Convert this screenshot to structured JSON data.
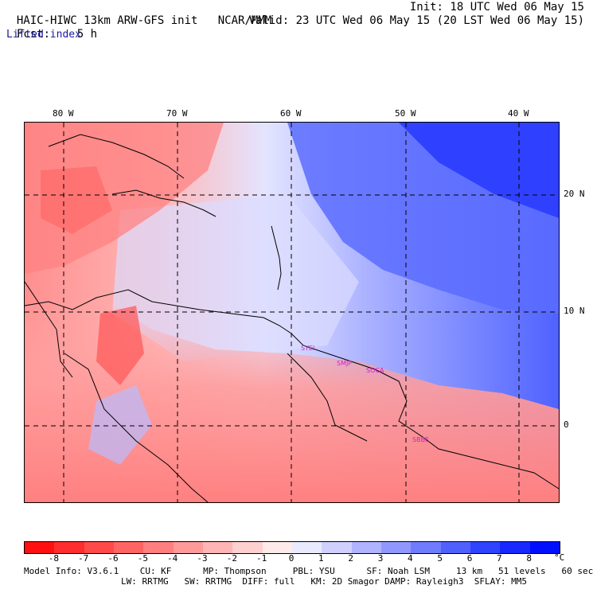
{
  "header": {
    "model": "HAIC-HIWC 13km ARW-GFS init",
    "org": "NCAR/MMM",
    "fcst_label": "Fcst:",
    "fcst_value": "5 h",
    "init": "Init: 18 UTC Wed 06 May 15",
    "valid": "Valid: 23 UTC Wed 06 May 15 (20 LST Wed 06 May 15)",
    "field": "Lifted index"
  },
  "map": {
    "lon_labels": [
      "80 W",
      "70 W",
      "60 W",
      "50 W",
      "40 W"
    ],
    "lat_labels": [
      "20 N",
      "10 N",
      "0"
    ],
    "stations": [
      "SYEI",
      "SMJP",
      "SOCA",
      "SBBE"
    ]
  },
  "colorbar": {
    "labels": [
      "-8",
      "-7",
      "-6",
      "-5",
      "-4",
      "-3",
      "-2",
      "-1",
      "0",
      "1",
      "2",
      "3",
      "4",
      "5",
      "6",
      "7",
      "8"
    ],
    "unit": "°C",
    "colors": [
      "#ff1010",
      "#ff2d2d",
      "#ff4a4a",
      "#ff6464",
      "#ff7f7f",
      "#ff9a9a",
      "#ffb5b5",
      "#ffd0d0",
      "#ffeaea",
      "#eaeaff",
      "#d0d0ff",
      "#b0b4ff",
      "#9098ff",
      "#707cff",
      "#5060ff",
      "#3044ff",
      "#1828ff",
      "#0010ff"
    ]
  },
  "footer": {
    "line1": "Model Info: V3.6.1    CU: KF      MP: Thompson     PBL: YSU      SF: Noah LSM     13 km   51 levels   60 sec",
    "line2": "LW: RRTMG   SW: RRTMG  DIFF: full   KM: 2D Smagor DAMP: Rayleigh3  SFLAY: MM5"
  }
}
